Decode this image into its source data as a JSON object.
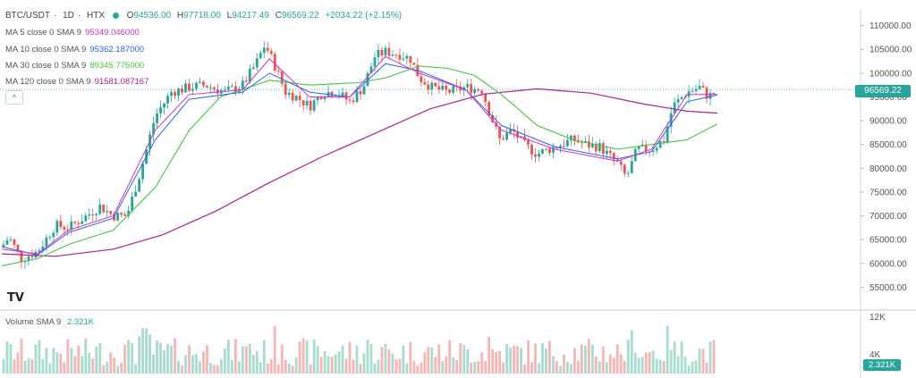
{
  "header": {
    "symbol": "BTC/USDT",
    "interval": "1D",
    "exchange": "HTX",
    "sep": "·",
    "open_label": "O",
    "open": "94536.00",
    "high_label": "H",
    "high": "97718.00",
    "low_label": "L",
    "low": "94217.49",
    "close_label": "C",
    "close": "96569.22",
    "change": "+2034.22 (+2.15%)"
  },
  "indicators": [
    {
      "label": "MA 5 close 0 SMA 9",
      "value": "95349.046000",
      "color": "#d633c4"
    },
    {
      "label": "MA 10 close 0 SMA 9",
      "value": "95362.187000",
      "color": "#2962ff"
    },
    {
      "label": "MA 30 close 0 SMA 9",
      "value": "89345.775000",
      "color": "#43c743"
    },
    {
      "label": "MA 120 close 0 SMA 9",
      "value": "91581.087167",
      "color": "#b02090"
    }
  ],
  "colors": {
    "up": "#26a69a",
    "down": "#ef5350",
    "up_vol": "#a7dccf",
    "down_vol": "#f7b6b4"
  },
  "logo_text": "TV",
  "collapse_icon": "^",
  "current_price": "96569.22",
  "volume": {
    "label": "Volume SMA 9",
    "value": "2.321K",
    "tag": "2.321K",
    "ticks": [
      "12K",
      "4K"
    ]
  },
  "chart_data": {
    "type": "candlestick",
    "y_axis_ticks": [
      55000,
      60000,
      65000,
      70000,
      75000,
      80000,
      85000,
      90000,
      95000,
      100000,
      105000,
      110000
    ],
    "y_axis_labels": [
      "55000.00",
      "60000.00",
      "65000.00",
      "70000.00",
      "75000.00",
      "80000.00",
      "85000.00",
      "90000.00",
      "95000.00",
      "100000.00",
      "105000.00",
      "110000.00"
    ],
    "ylim": [
      51500,
      113500
    ],
    "keypoints": [
      [
        0,
        63500
      ],
      [
        8,
        65500
      ],
      [
        22,
        61000
      ],
      [
        40,
        62500
      ],
      [
        60,
        68000
      ],
      [
        75,
        67500
      ],
      [
        95,
        70000
      ],
      [
        110,
        72000
      ],
      [
        125,
        70000
      ],
      [
        140,
        70000
      ],
      [
        155,
        79000
      ],
      [
        172,
        91000
      ],
      [
        190,
        96000
      ],
      [
        210,
        97000
      ],
      [
        228,
        97500
      ],
      [
        250,
        96000
      ],
      [
        270,
        97500
      ],
      [
        285,
        102000
      ],
      [
        295,
        106000
      ],
      [
        305,
        102000
      ],
      [
        318,
        96000
      ],
      [
        330,
        95000
      ],
      [
        345,
        93000
      ],
      [
        360,
        96000
      ],
      [
        375,
        96000
      ],
      [
        390,
        94000
      ],
      [
        405,
        97000
      ],
      [
        418,
        103500
      ],
      [
        430,
        104500
      ],
      [
        445,
        104000
      ],
      [
        458,
        103000
      ],
      [
        468,
        99000
      ],
      [
        482,
        97000
      ],
      [
        500,
        96000
      ],
      [
        520,
        97000
      ],
      [
        538,
        96500
      ],
      [
        548,
        91000
      ],
      [
        558,
        86000
      ],
      [
        572,
        88000
      ],
      [
        585,
        85000
      ],
      [
        600,
        83000
      ],
      [
        620,
        84500
      ],
      [
        640,
        86000
      ],
      [
        655,
        85000
      ],
      [
        670,
        84500
      ],
      [
        690,
        81000
      ],
      [
        700,
        78000
      ],
      [
        712,
        84000
      ],
      [
        728,
        84000
      ],
      [
        742,
        86000
      ],
      [
        752,
        93000
      ],
      [
        768,
        96000
      ],
      [
        782,
        97000
      ],
      [
        792,
        95000
      ],
      [
        802,
        96569
      ]
    ],
    "ma5": [
      [
        0,
        63000
      ],
      [
        40,
        62000
      ],
      [
        75,
        67000
      ],
      [
        125,
        70000
      ],
      [
        172,
        88000
      ],
      [
        210,
        95500
      ],
      [
        270,
        96500
      ],
      [
        300,
        103000
      ],
      [
        345,
        95000
      ],
      [
        390,
        95000
      ],
      [
        430,
        103500
      ],
      [
        468,
        100000
      ],
      [
        520,
        96500
      ],
      [
        560,
        88000
      ],
      [
        620,
        84000
      ],
      [
        690,
        81500
      ],
      [
        728,
        84000
      ],
      [
        768,
        95500
      ],
      [
        802,
        95500
      ]
    ],
    "ma10": [
      [
        0,
        63500
      ],
      [
        40,
        61800
      ],
      [
        75,
        66500
      ],
      [
        125,
        69500
      ],
      [
        172,
        86000
      ],
      [
        210,
        94500
      ],
      [
        270,
        96000
      ],
      [
        300,
        100000
      ],
      [
        345,
        96000
      ],
      [
        390,
        95000
      ],
      [
        430,
        102000
      ],
      [
        468,
        100500
      ],
      [
        520,
        96500
      ],
      [
        560,
        89000
      ],
      [
        620,
        84500
      ],
      [
        690,
        82000
      ],
      [
        728,
        83500
      ],
      [
        768,
        94000
      ],
      [
        802,
        95400
      ]
    ],
    "ma30": [
      [
        0,
        59500
      ],
      [
        40,
        61000
      ],
      [
        75,
        64000
      ],
      [
        125,
        67000
      ],
      [
        172,
        76000
      ],
      [
        210,
        88000
      ],
      [
        245,
        95000
      ],
      [
        300,
        98500
      ],
      [
        345,
        97500
      ],
      [
        400,
        98000
      ],
      [
        430,
        99000
      ],
      [
        468,
        101500
      ],
      [
        500,
        101000
      ],
      [
        530,
        99500
      ],
      [
        560,
        95500
      ],
      [
        600,
        89000
      ],
      [
        640,
        86000
      ],
      [
        690,
        84000
      ],
      [
        728,
        85000
      ],
      [
        768,
        86000
      ],
      [
        802,
        89345
      ]
    ],
    "ma120": [
      [
        0,
        62000
      ],
      [
        60,
        61500
      ],
      [
        125,
        63000
      ],
      [
        180,
        66000
      ],
      [
        240,
        71000
      ],
      [
        300,
        77000
      ],
      [
        360,
        82500
      ],
      [
        420,
        87500
      ],
      [
        480,
        92500
      ],
      [
        540,
        95600
      ],
      [
        600,
        96700
      ],
      [
        660,
        95800
      ],
      [
        720,
        93500
      ],
      [
        768,
        92000
      ],
      [
        802,
        91600
      ]
    ],
    "volume_ylim": [
      0,
      12000
    ],
    "x_range": [
      0,
      802
    ]
  }
}
